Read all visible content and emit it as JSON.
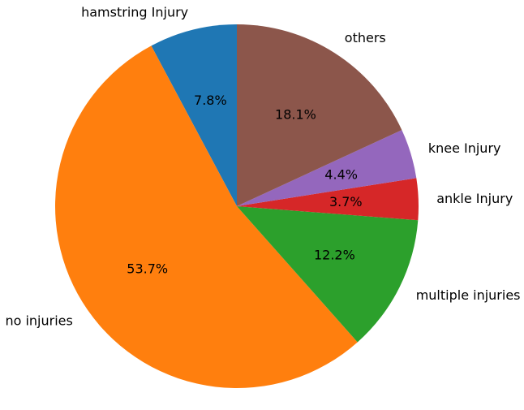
{
  "chart_data": {
    "type": "pie",
    "title": "",
    "start_angle_deg": 90,
    "direction": "counterclockwise",
    "slices": [
      {
        "label": "hamstring Injury",
        "value": 7.8,
        "pct_text": "7.8%",
        "color": "#1f77b4"
      },
      {
        "label": "no injuries",
        "value": 53.7,
        "pct_text": "53.7%",
        "color": "#ff7f0e"
      },
      {
        "label": "multiple injuries",
        "value": 12.2,
        "pct_text": "12.2%",
        "color": "#2ca02c"
      },
      {
        "label": "ankle Injury",
        "value": 3.7,
        "pct_text": "3.7%",
        "color": "#d62728"
      },
      {
        "label": "knee Injury",
        "value": 4.4,
        "pct_text": "4.4%",
        "color": "#9467bd"
      },
      {
        "label": "others",
        "value": 18.1,
        "pct_text": "18.1%",
        "color": "#8c564b"
      }
    ]
  }
}
